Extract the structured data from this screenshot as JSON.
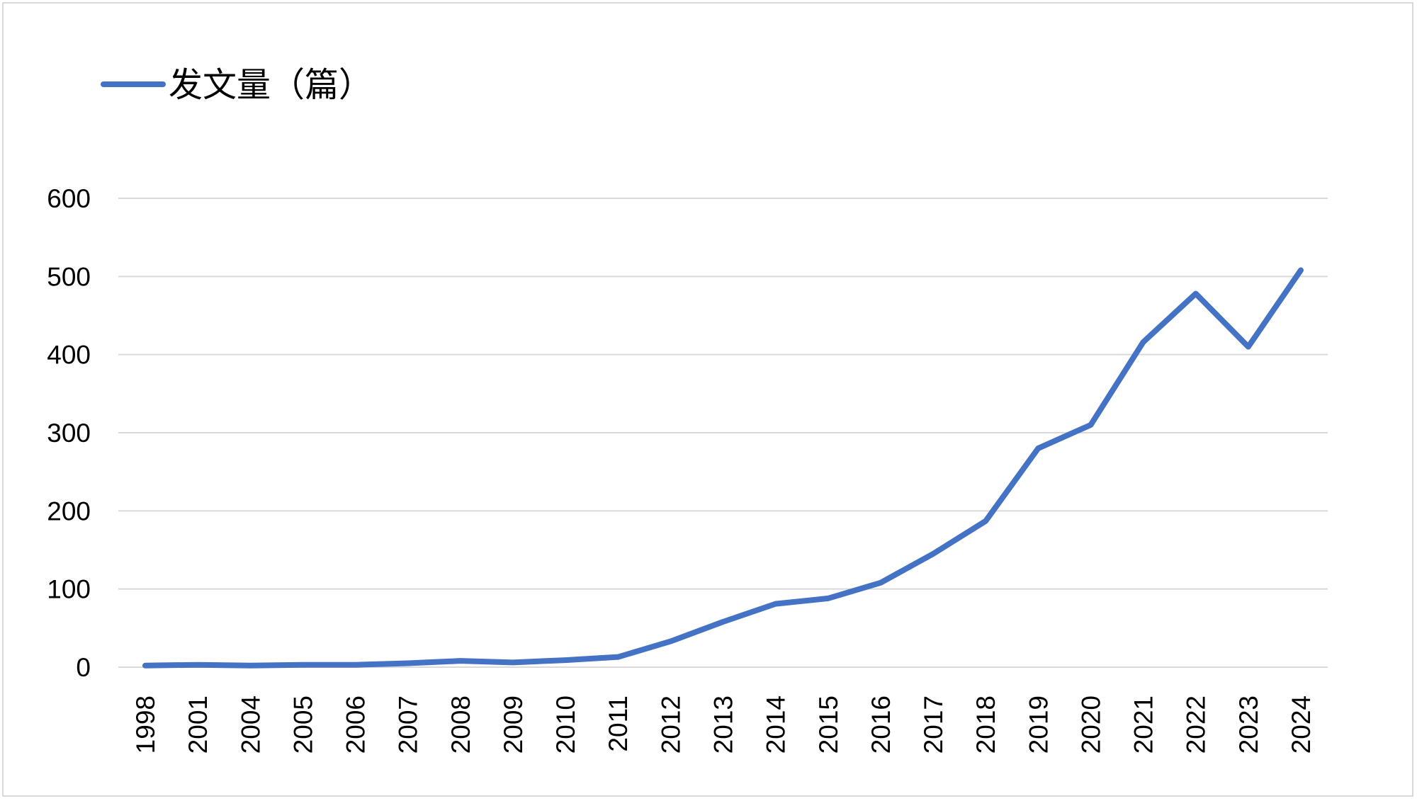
{
  "chart_data": {
    "type": "line",
    "title": "",
    "xlabel": "",
    "ylabel": "",
    "legend": {
      "position": "top-left",
      "entries": [
        "发文量（篇）"
      ]
    },
    "categories": [
      "1998",
      "2001",
      "2004",
      "2005",
      "2006",
      "2007",
      "2008",
      "2009",
      "2010",
      "2011",
      "2012",
      "2013",
      "2014",
      "2015",
      "2016",
      "2017",
      "2018",
      "2019",
      "2020",
      "2021",
      "2022",
      "2023",
      "2024"
    ],
    "series": [
      {
        "name": "发文量（篇）",
        "color": "#4472C4",
        "values": [
          2,
          3,
          2,
          3,
          3,
          5,
          8,
          6,
          9,
          13,
          33,
          58,
          81,
          88,
          108,
          145,
          187,
          280,
          310,
          416,
          478,
          410,
          508
        ]
      }
    ],
    "ylim": [
      0,
      600
    ],
    "yticks": [
      0,
      100,
      200,
      300,
      400,
      500,
      600
    ],
    "grid": true
  }
}
